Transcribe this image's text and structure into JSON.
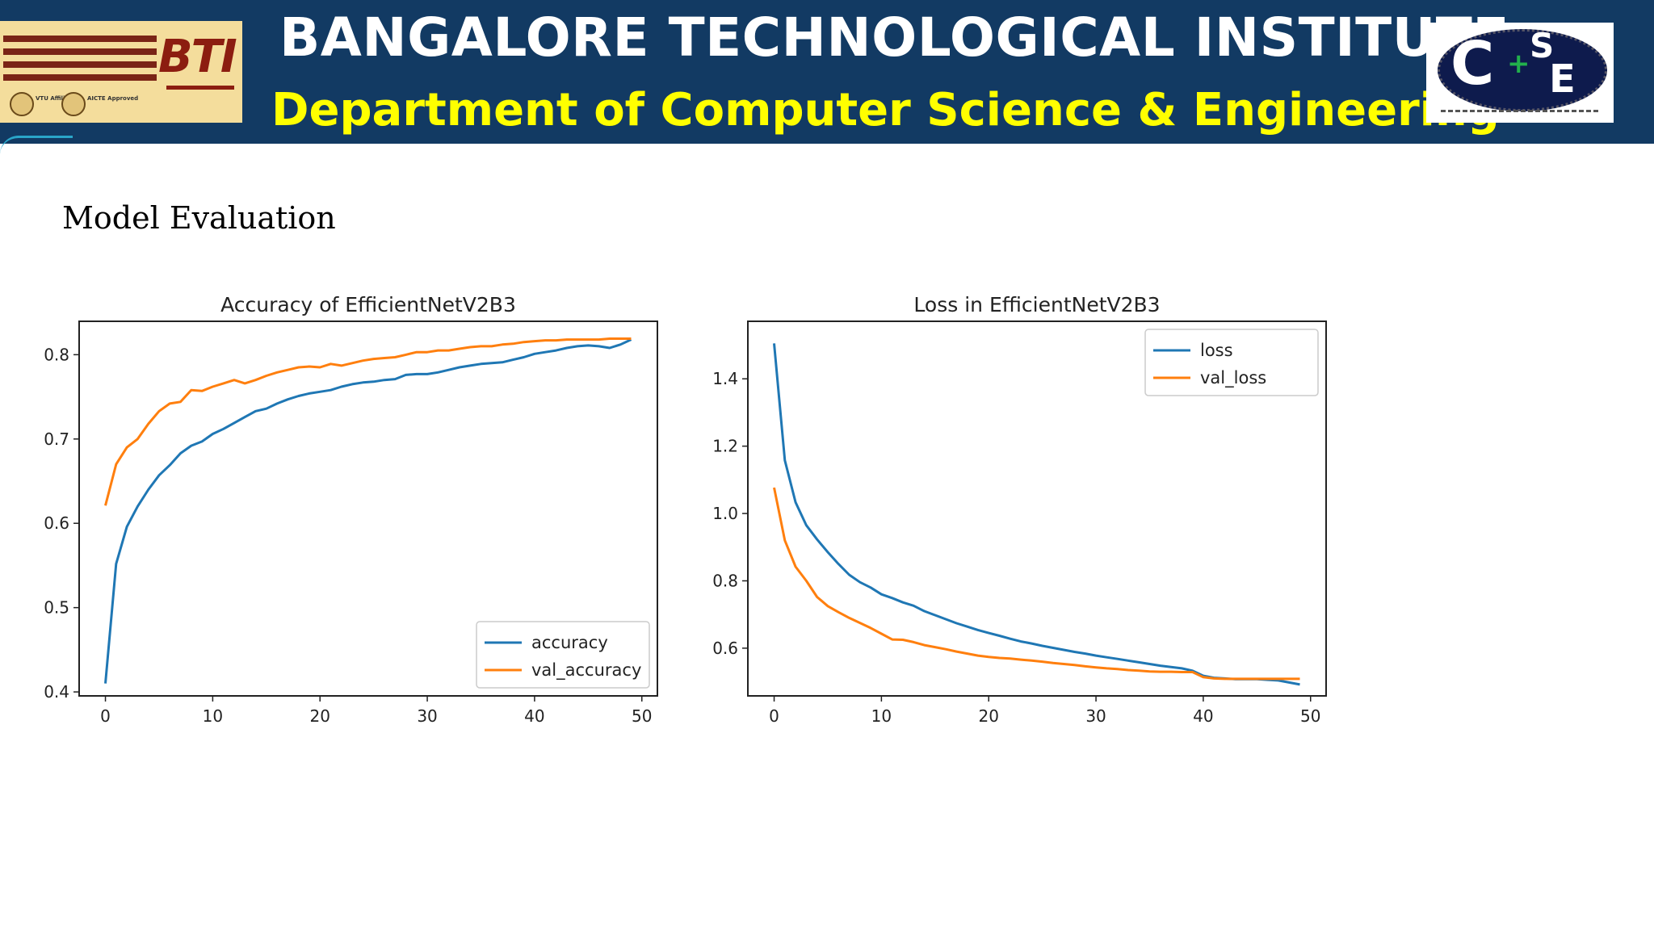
{
  "header": {
    "institute": "BANGALORE TECHNOLOGICAL INSTITUTE",
    "department": "Department of Computer Science  & Engineering",
    "logo_left": {
      "text": "BTI",
      "badge_1": "VTU Affiliated",
      "badge_2": "AICTE Approved"
    },
    "logo_right": {
      "letters": [
        "C",
        "S",
        "E"
      ]
    }
  },
  "section": {
    "label": "Model Evaluation"
  },
  "colors": {
    "banner": "#123a63",
    "title": "#ffffff",
    "subtitle": "#ffff00",
    "series_1": "#1f77b4",
    "series_2": "#ff7f0e"
  },
  "chart_data": [
    {
      "type": "line",
      "title": "Accuracy of EfficientNetV2B3",
      "xlabel": "",
      "ylabel": "",
      "xlim": [
        -2.45,
        51.45
      ],
      "ylim": [
        0.3953,
        0.8396
      ],
      "xticks": [
        0,
        10,
        20,
        30,
        40,
        50
      ],
      "yticks": [
        0.4,
        0.5,
        0.6,
        0.7,
        0.8
      ],
      "ytick_labels": [
        "0.4",
        "0.5",
        "0.6",
        "0.7",
        "0.8"
      ],
      "legend": "lower-right",
      "grid": false,
      "x": [
        0,
        1,
        2,
        3,
        4,
        5,
        6,
        7,
        8,
        9,
        10,
        11,
        12,
        13,
        14,
        15,
        16,
        17,
        18,
        19,
        20,
        21,
        22,
        23,
        24,
        25,
        26,
        27,
        28,
        29,
        30,
        31,
        32,
        33,
        34,
        35,
        36,
        37,
        38,
        39,
        40,
        41,
        42,
        43,
        44,
        45,
        46,
        47,
        48,
        49
      ],
      "series": [
        {
          "name": "accuracy",
          "values": [
            0.41,
            0.552,
            0.596,
            0.62,
            0.64,
            0.657,
            0.669,
            0.683,
            0.692,
            0.697,
            0.706,
            0.712,
            0.719,
            0.726,
            0.733,
            0.736,
            0.742,
            0.747,
            0.751,
            0.754,
            0.756,
            0.758,
            0.762,
            0.765,
            0.767,
            0.768,
            0.77,
            0.771,
            0.776,
            0.777,
            0.777,
            0.779,
            0.782,
            0.785,
            0.787,
            0.789,
            0.79,
            0.791,
            0.794,
            0.797,
            0.801,
            0.803,
            0.805,
            0.808,
            0.81,
            0.811,
            0.81,
            0.808,
            0.812,
            0.818
          ]
        },
        {
          "name": "val_accuracy",
          "values": [
            0.621,
            0.67,
            0.69,
            0.7,
            0.718,
            0.733,
            0.742,
            0.744,
            0.758,
            0.757,
            0.762,
            0.766,
            0.77,
            0.766,
            0.77,
            0.775,
            0.779,
            0.782,
            0.785,
            0.786,
            0.785,
            0.789,
            0.787,
            0.79,
            0.793,
            0.795,
            0.796,
            0.797,
            0.8,
            0.803,
            0.803,
            0.805,
            0.805,
            0.807,
            0.809,
            0.81,
            0.81,
            0.812,
            0.813,
            0.815,
            0.816,
            0.817,
            0.817,
            0.818,
            0.818,
            0.818,
            0.818,
            0.819,
            0.819,
            0.819
          ]
        }
      ]
    },
    {
      "type": "line",
      "title": "Loss in EfficientNetV2B3",
      "xlabel": "",
      "ylabel": "",
      "xlim": [
        -2.45,
        51.45
      ],
      "ylim": [
        0.4583,
        1.5708
      ],
      "xticks": [
        0,
        10,
        20,
        30,
        40,
        50
      ],
      "yticks": [
        0.6,
        0.8,
        1.0,
        1.2,
        1.4
      ],
      "ytick_labels": [
        "0.6",
        "0.8",
        "1.0",
        "1.2",
        "1.4"
      ],
      "legend": "upper-right",
      "grid": false,
      "x": [
        0,
        1,
        2,
        3,
        4,
        5,
        6,
        7,
        8,
        9,
        10,
        11,
        12,
        13,
        14,
        15,
        16,
        17,
        18,
        19,
        20,
        21,
        22,
        23,
        24,
        25,
        26,
        27,
        28,
        29,
        30,
        31,
        32,
        33,
        34,
        35,
        36,
        37,
        38,
        39,
        40,
        41,
        42,
        43,
        44,
        45,
        46,
        47,
        48,
        49
      ],
      "series": [
        {
          "name": "loss",
          "values": [
            1.505,
            1.158,
            1.033,
            0.965,
            0.923,
            0.885,
            0.85,
            0.818,
            0.796,
            0.78,
            0.76,
            0.749,
            0.736,
            0.726,
            0.71,
            0.698,
            0.686,
            0.674,
            0.664,
            0.654,
            0.645,
            0.637,
            0.628,
            0.62,
            0.614,
            0.607,
            0.601,
            0.595,
            0.589,
            0.584,
            0.578,
            0.573,
            0.568,
            0.563,
            0.558,
            0.553,
            0.548,
            0.544,
            0.54,
            0.533,
            0.518,
            0.512,
            0.51,
            0.508,
            0.508,
            0.508,
            0.506,
            0.504,
            0.498,
            0.492
          ]
        },
        {
          "name": "val_loss",
          "values": [
            1.077,
            0.92,
            0.842,
            0.8,
            0.752,
            0.725,
            0.707,
            0.69,
            0.675,
            0.66,
            0.643,
            0.626,
            0.625,
            0.618,
            0.609,
            0.603,
            0.597,
            0.59,
            0.584,
            0.578,
            0.574,
            0.571,
            0.569,
            0.566,
            0.563,
            0.56,
            0.556,
            0.553,
            0.55,
            0.546,
            0.543,
            0.54,
            0.538,
            0.535,
            0.533,
            0.531,
            0.53,
            0.53,
            0.529,
            0.529,
            0.514,
            0.51,
            0.509,
            0.509,
            0.509,
            0.509,
            0.509,
            0.509,
            0.509,
            0.509
          ]
        }
      ]
    }
  ]
}
